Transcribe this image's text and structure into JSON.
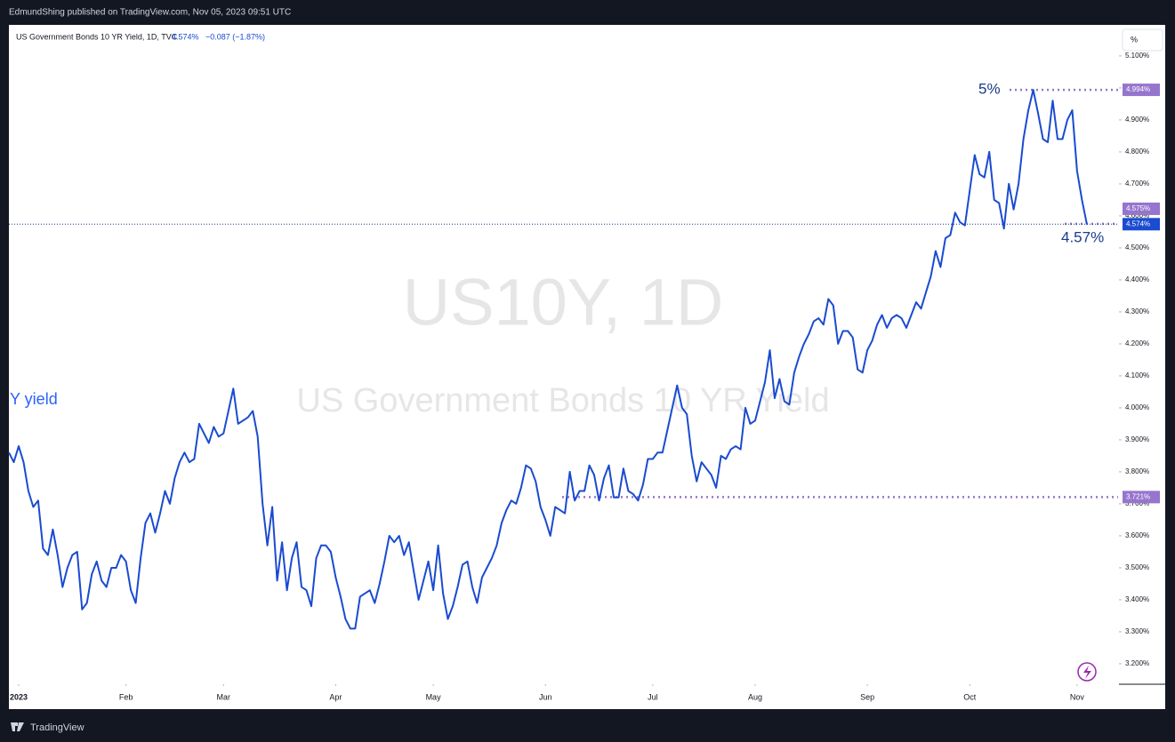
{
  "header": "EdmundShing published on TradingView.com, Nov 05, 2023 09:51 UTC",
  "footer": "TradingView",
  "scale_button": "%",
  "chart_data": {
    "type": "line",
    "legend_title": "US Government Bonds 10 YR Yield, 1D, TVC",
    "legend_last": "4.574%",
    "legend_change": "−0.087 (−1.87%)",
    "watermark": [
      "US10Y, 1D",
      "US Government Bonds 10 YR Yield"
    ],
    "annotations": [
      "Y yield",
      "5%",
      "4.57%"
    ],
    "color": "#1a4bd0",
    "values": [
      3.86,
      3.83,
      3.88,
      3.83,
      3.74,
      3.69,
      3.71,
      3.56,
      3.54,
      3.62,
      3.54,
      3.44,
      3.5,
      3.54,
      3.55,
      3.37,
      3.39,
      3.48,
      3.52,
      3.46,
      3.44,
      3.5,
      3.5,
      3.54,
      3.52,
      3.43,
      3.39,
      3.53,
      3.64,
      3.67,
      3.61,
      3.67,
      3.74,
      3.7,
      3.78,
      3.83,
      3.86,
      3.83,
      3.84,
      3.95,
      3.92,
      3.89,
      3.94,
      3.91,
      3.92,
      3.99,
      4.06,
      3.95,
      3.96,
      3.97,
      3.99,
      3.91,
      3.7,
      3.57,
      3.69,
      3.46,
      3.58,
      3.43,
      3.53,
      3.58,
      3.44,
      3.43,
      3.38,
      3.53,
      3.57,
      3.57,
      3.55,
      3.47,
      3.41,
      3.34,
      3.31,
      3.31,
      3.41,
      3.42,
      3.43,
      3.39,
      3.45,
      3.52,
      3.6,
      3.58,
      3.6,
      3.54,
      3.58,
      3.49,
      3.4,
      3.46,
      3.52,
      3.43,
      3.57,
      3.42,
      3.34,
      3.38,
      3.44,
      3.51,
      3.52,
      3.44,
      3.39,
      3.47,
      3.5,
      3.53,
      3.57,
      3.64,
      3.68,
      3.71,
      3.7,
      3.75,
      3.82,
      3.81,
      3.77,
      3.69,
      3.65,
      3.6,
      3.69,
      3.68,
      3.67,
      3.8,
      3.71,
      3.74,
      3.74,
      3.82,
      3.79,
      3.71,
      3.78,
      3.82,
      3.72,
      3.72,
      3.81,
      3.74,
      3.73,
      3.71,
      3.76,
      3.84,
      3.84,
      3.86,
      3.86,
      3.93,
      4.0,
      4.07,
      4.0,
      3.98,
      3.85,
      3.77,
      3.83,
      3.81,
      3.79,
      3.75,
      3.85,
      3.84,
      3.87,
      3.88,
      3.87,
      4.0,
      3.95,
      3.96,
      4.02,
      4.08,
      4.18,
      4.03,
      4.09,
      4.02,
      4.01,
      4.11,
      4.16,
      4.2,
      4.23,
      4.27,
      4.28,
      4.26,
      4.34,
      4.32,
      4.2,
      4.24,
      4.24,
      4.22,
      4.12,
      4.11,
      4.18,
      4.21,
      4.26,
      4.29,
      4.25,
      4.28,
      4.29,
      4.28,
      4.25,
      4.29,
      4.33,
      4.31,
      4.36,
      4.41,
      4.49,
      4.44,
      4.53,
      4.54,
      4.61,
      4.58,
      4.57,
      4.68,
      4.79,
      4.73,
      4.72,
      4.8,
      4.65,
      4.64,
      4.56,
      4.7,
      4.62,
      4.7,
      4.84,
      4.93,
      4.994,
      4.92,
      4.84,
      4.83,
      4.96,
      4.84,
      4.84,
      4.9,
      4.93,
      4.74,
      4.65,
      4.574
    ],
    "xlim": [
      0,
      227.4
    ],
    "xticks": [
      {
        "value": 2,
        "label": "2023"
      },
      {
        "value": 24,
        "label": "Feb"
      },
      {
        "value": 44,
        "label": "Mar"
      },
      {
        "value": 67,
        "label": "Apr"
      },
      {
        "value": 87,
        "label": "May"
      },
      {
        "value": 110,
        "label": "Jun"
      },
      {
        "value": 132,
        "label": "Jul"
      },
      {
        "value": 153,
        "label": "Aug"
      },
      {
        "value": 176,
        "label": "Sep"
      },
      {
        "value": 197,
        "label": "Oct"
      },
      {
        "value": 219,
        "label": "Nov"
      }
    ],
    "ylim": [
      3.136,
      5.197
    ],
    "yticks": [
      {
        "value": 3.2,
        "label": "3.200%"
      },
      {
        "value": 3.3,
        "label": "3.300%"
      },
      {
        "value": 3.4,
        "label": "3.400%"
      },
      {
        "value": 3.5,
        "label": "3.500%"
      },
      {
        "value": 3.6,
        "label": "3.600%"
      },
      {
        "value": 3.7,
        "label": "3.700%"
      },
      {
        "value": 3.8,
        "label": "3.800%"
      },
      {
        "value": 3.9,
        "label": "3.900%"
      },
      {
        "value": 4.0,
        "label": "4.000%"
      },
      {
        "value": 4.1,
        "label": "4.100%"
      },
      {
        "value": 4.2,
        "label": "4.200%"
      },
      {
        "value": 4.3,
        "label": "4.300%"
      },
      {
        "value": 4.4,
        "label": "4.400%"
      },
      {
        "value": 4.5,
        "label": "4.500%"
      },
      {
        "value": 4.6,
        "label": "4.600%"
      },
      {
        "value": 4.7,
        "label": "4.700%"
      },
      {
        "value": 4.8,
        "label": "4.800%"
      },
      {
        "value": 4.9,
        "label": "4.900%"
      },
      {
        "value": 5.0,
        "label": "5.000%"
      },
      {
        "value": 5.1,
        "label": "5.100%"
      }
    ],
    "grid": false,
    "price_labels": [
      {
        "value": 4.994,
        "label": "4.994%",
        "color": "#9575cd"
      },
      {
        "value": 4.575,
        "label": "4.575%",
        "color": "#9575cd"
      },
      {
        "value": 4.574,
        "label": "4.574%",
        "color": "#1a4bd0"
      },
      {
        "value": 3.721,
        "label": "3.721%",
        "color": "#9575cd"
      }
    ]
  }
}
